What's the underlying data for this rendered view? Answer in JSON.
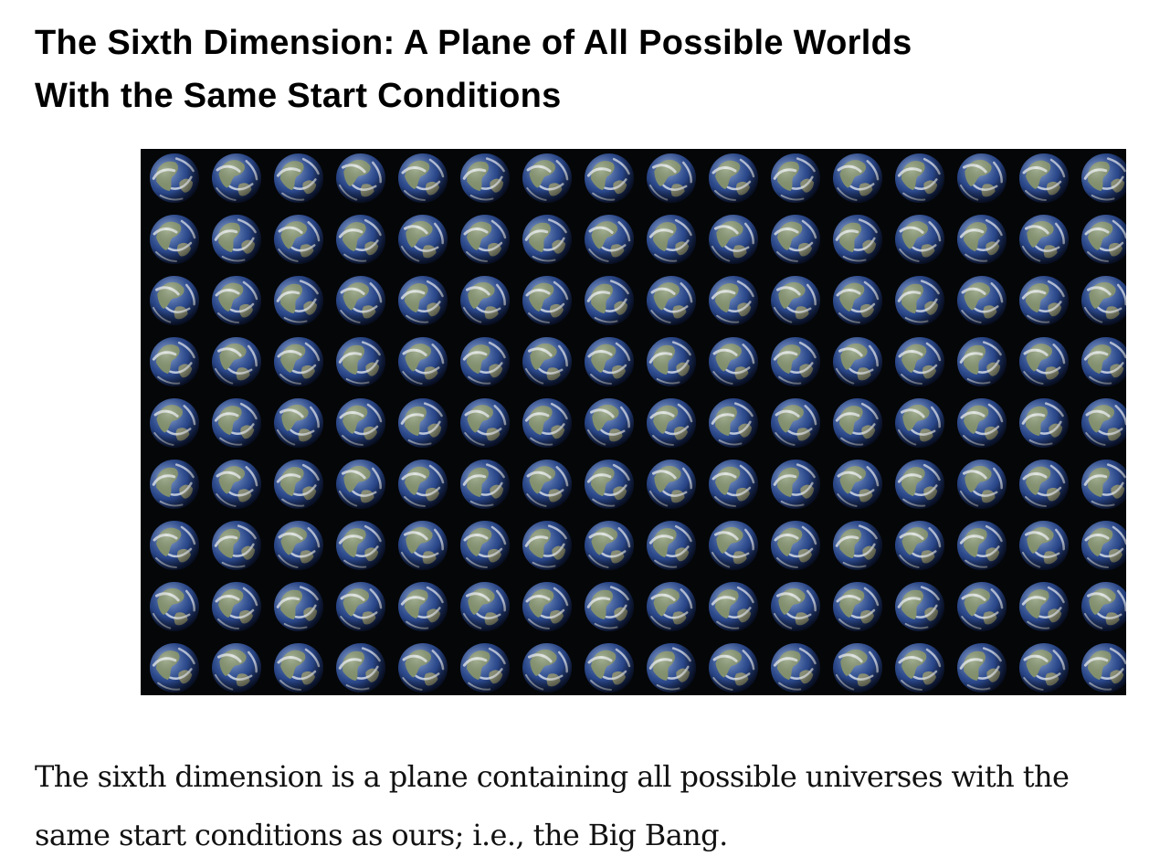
{
  "article": {
    "heading_lines": [
      "The Sixth Dimension: A Plane of All Possible Worlds",
      "With the Same Start Conditions"
    ],
    "figure": {
      "subject": "grid of Earth globes",
      "icon": "earth-globe-icon",
      "rows": 9,
      "columns": 16,
      "colors": {
        "background": "#050608",
        "ocean": "#2c4a8e",
        "land": "#8d9a6a",
        "cloud": "#eef1f5"
      }
    },
    "body_lines": [
      "The sixth dimension is a plane containing all possible universes with the",
      "same start conditions as ours; i.e., the Big Bang."
    ]
  }
}
